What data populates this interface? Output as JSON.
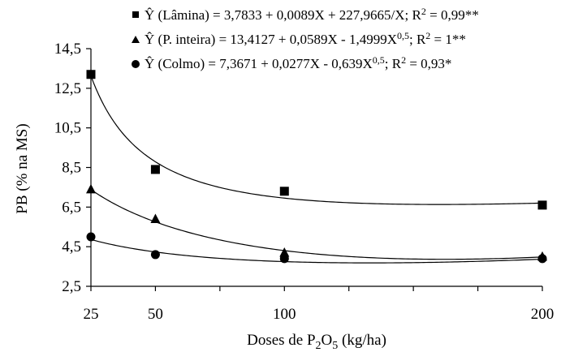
{
  "chart_data": {
    "type": "scatter",
    "xlabel_main": "Doses de P",
    "xlabel_sub1": "2",
    "xlabel_mid": "O",
    "xlabel_sub2": "5",
    "xlabel_tail": " (kg/ha)",
    "ylabel": "PB (% na MS)",
    "xlim": [
      25,
      200
    ],
    "ylim": [
      2.5,
      14.5
    ],
    "x_ticks": [
      25,
      50,
      100,
      200
    ],
    "x_tick_labels": [
      "25",
      "50",
      "100",
      "200"
    ],
    "y_ticks": [
      2.5,
      4.5,
      6.5,
      8.5,
      10.5,
      12.5,
      14.5
    ],
    "y_tick_labels": [
      "2,5",
      "4,5",
      "6,5",
      "8,5",
      "10,5",
      "12,5",
      "14,5"
    ],
    "grid": false,
    "legend_position": "top",
    "series": [
      {
        "marker": "square",
        "points": [
          [
            25,
            13.2
          ],
          [
            50,
            8.4
          ],
          [
            100,
            7.3
          ],
          [
            200,
            6.6
          ]
        ],
        "eq": {
          "form": "lamina",
          "a": 3.7833,
          "b": 0.0089,
          "c": 227.9665
        },
        "legend": {
          "pre": "Ŷ (Lâmina) = 3,7833 + 0,0089X + 227,9665/X; R",
          "sup": "2",
          "post": " = 0,99**"
        }
      },
      {
        "marker": "triangle",
        "points": [
          [
            25,
            7.4
          ],
          [
            50,
            5.9
          ],
          [
            100,
            4.2
          ],
          [
            200,
            4.0
          ]
        ],
        "eq": {
          "form": "sqrt",
          "a": 13.4127,
          "b": 0.0589,
          "c": -1.4999
        },
        "legend": {
          "pre": "Ŷ (P. inteira) = 13,4127 + 0,0589X - 1,4999X",
          "sup": "0,5",
          "mid": "; R",
          "sup2": "2",
          "post": " = 1**"
        }
      },
      {
        "marker": "circle",
        "points": [
          [
            25,
            5.0
          ],
          [
            50,
            4.1
          ],
          [
            100,
            3.9
          ],
          [
            200,
            3.9
          ]
        ],
        "eq": {
          "form": "sqrt",
          "a": 7.3671,
          "b": 0.0277,
          "c": -0.639
        },
        "legend": {
          "pre": "Ŷ (Colmo) = 7,3671 + 0,0277X - 0,639X",
          "sup": "0,5",
          "mid": "; R",
          "sup2": "2",
          "post": " = 0,93*"
        }
      }
    ]
  }
}
